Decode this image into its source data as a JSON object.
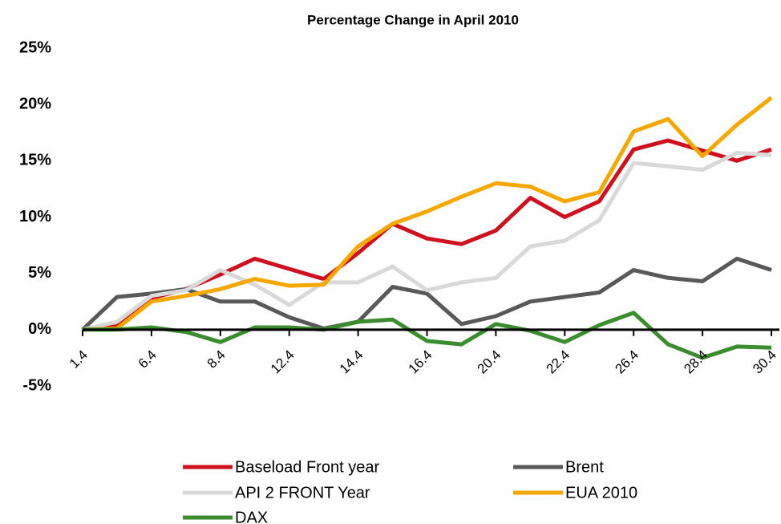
{
  "chart_data": {
    "type": "line",
    "title": "Percentage Change in April 2010",
    "categories": [
      "1.4",
      null,
      "6.4",
      null,
      "8.4",
      null,
      "12.4",
      null,
      "14.4",
      null,
      "16.4",
      null,
      "20.4",
      null,
      "22.4",
      null,
      "26.4",
      null,
      "28.4",
      null,
      "30.4"
    ],
    "series": [
      {
        "name": "Baseload Front year",
        "color": "#d0101e",
        "values": [
          0,
          0.3,
          2.8,
          3.6,
          4.9,
          6.3,
          5.4,
          4.5,
          6.8,
          9.4,
          8.1,
          7.6,
          8.8,
          11.7,
          10.0,
          11.4,
          16.0,
          16.8,
          15.9,
          15.0,
          16.0
        ]
      },
      {
        "name": "Brent",
        "color": "#595959",
        "values": [
          0,
          2.9,
          3.2,
          3.6,
          2.5,
          2.5,
          1.1,
          0.1,
          0.7,
          3.8,
          3.2,
          0.5,
          1.2,
          2.5,
          2.9,
          3.3,
          5.3,
          4.6,
          4.3,
          6.3,
          5.3
        ]
      },
      {
        "name": "API 2 FRONT Year",
        "color": "#d9d9d9",
        "values": [
          0,
          0.7,
          3.0,
          3.5,
          5.3,
          4.0,
          2.2,
          4.2,
          4.2,
          5.6,
          3.5,
          4.2,
          4.6,
          7.4,
          7.9,
          9.7,
          14.8,
          14.5,
          14.2,
          15.7,
          15.5
        ]
      },
      {
        "name": "EUA 2010",
        "color": "#f7a800",
        "values": [
          0,
          0.1,
          2.5,
          3.0,
          3.6,
          4.5,
          3.9,
          4.0,
          7.4,
          9.4,
          10.5,
          11.8,
          13.0,
          12.7,
          11.4,
          12.2,
          17.6,
          18.7,
          15.4,
          18.2,
          20.6
        ]
      },
      {
        "name": "DAX",
        "color": "#3a8c2e",
        "values": [
          0,
          0,
          0.2,
          -0.2,
          -1.1,
          0.2,
          0.2,
          0,
          0.7,
          0.9,
          -1.0,
          -1.3,
          0.5,
          -0.1,
          -1.1,
          0.4,
          1.5,
          -1.3,
          -2.5,
          -1.5,
          -1.6
        ]
      }
    ],
    "ylim": [
      -5,
      25
    ],
    "yticks": [
      {
        "value": -5,
        "label": "-5%"
      },
      {
        "value": 0,
        "label": "0%"
      },
      {
        "value": 5,
        "label": "5%"
      },
      {
        "value": 10,
        "label": "10%"
      },
      {
        "value": 15,
        "label": "15%"
      },
      {
        "value": 20,
        "label": "20%"
      },
      {
        "value": 25,
        "label": "25%"
      }
    ],
    "grid": false
  }
}
